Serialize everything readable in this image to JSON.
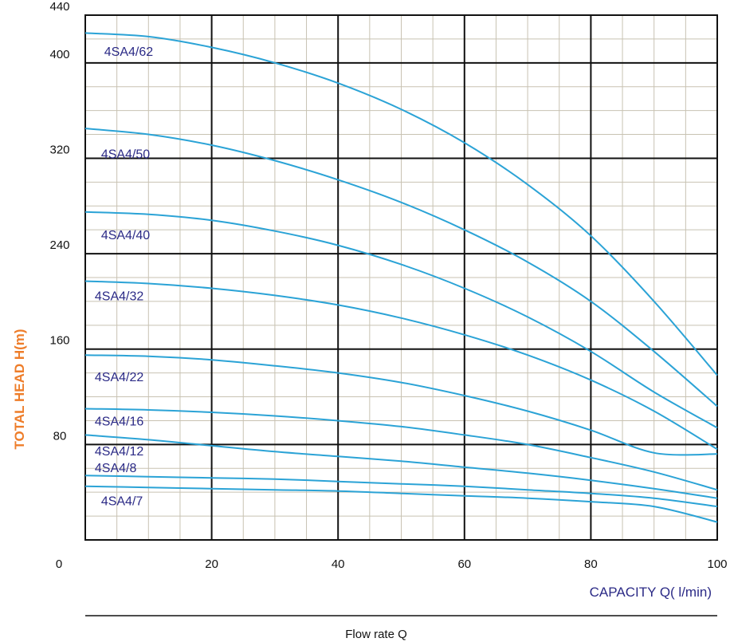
{
  "chart_data": {
    "type": "line",
    "xlabel": "CAPACITY Q( l/min)",
    "ylabel": "TOTAL HEAD H(m)",
    "footer": "Flow rate Q",
    "xlim": [
      0,
      100
    ],
    "ylim": [
      0,
      440
    ],
    "x_ticks": [
      "0",
      "20",
      "40",
      "60",
      "80",
      "100"
    ],
    "y_ticks": [
      "80",
      "160",
      "240",
      "320",
      "400",
      "440"
    ],
    "colors": {
      "curve": "#2ba3d6",
      "label": "#2b2a86",
      "ylabel": "#ee7d2a",
      "major_grid": "#111111",
      "minor_grid": "#c8c2b2"
    },
    "series": [
      {
        "name": "4SA4/62",
        "label_pos": [
          3,
          406
        ],
        "x": [
          0,
          10,
          20,
          30,
          40,
          50,
          60,
          70,
          80,
          90,
          100
        ],
        "y": [
          425,
          422,
          413,
          400,
          383,
          361,
          333,
          298,
          255,
          200,
          138
        ]
      },
      {
        "name": "4SA4/50",
        "label_pos": [
          2.5,
          320
        ],
        "x": [
          0,
          10,
          20,
          30,
          40,
          50,
          60,
          70,
          80,
          90,
          100
        ],
        "y": [
          345,
          340,
          331,
          318,
          302,
          283,
          260,
          233,
          200,
          158,
          112
        ]
      },
      {
        "name": "4SA4/40",
        "label_pos": [
          2.5,
          252
        ],
        "x": [
          0,
          10,
          20,
          30,
          40,
          50,
          60,
          70,
          80,
          90,
          100
        ],
        "y": [
          275,
          273,
          268,
          259,
          247,
          231,
          211,
          187,
          158,
          124,
          94
        ]
      },
      {
        "name": "4SA4/32",
        "label_pos": [
          1.5,
          201
        ],
        "x": [
          0,
          10,
          20,
          30,
          40,
          50,
          60,
          70,
          80,
          90,
          100
        ],
        "y": [
          217,
          215,
          211,
          205,
          197,
          186,
          172,
          155,
          134,
          108,
          76
        ]
      },
      {
        "name": "4SA4/22",
        "label_pos": [
          1.5,
          133
        ],
        "x": [
          0,
          10,
          20,
          30,
          40,
          50,
          60,
          70,
          80,
          90,
          100
        ],
        "y": [
          155,
          154,
          151,
          146,
          140,
          132,
          121,
          108,
          92,
          73,
          72
        ]
      },
      {
        "name": "4SA4/16",
        "label_pos": [
          1.5,
          96
        ],
        "x": [
          0,
          10,
          20,
          30,
          40,
          50,
          60,
          70,
          80,
          90,
          100
        ],
        "y": [
          110,
          109,
          107,
          104,
          100,
          95,
          88,
          80,
          69,
          57,
          42
        ]
      },
      {
        "name": "4SA4/12",
        "label_pos": [
          1.5,
          71
        ],
        "x": [
          0,
          10,
          20,
          30,
          40,
          50,
          60,
          70,
          80,
          90,
          100
        ],
        "y": [
          88,
          84,
          79,
          74,
          70,
          66,
          61,
          56,
          50,
          43,
          35
        ]
      },
      {
        "name": "4SA4/8",
        "label_pos": [
          1.5,
          57
        ],
        "x": [
          0,
          10,
          20,
          30,
          40,
          50,
          60,
          70,
          80,
          90,
          100
        ],
        "y": [
          54,
          53,
          52,
          51,
          49,
          47,
          45,
          42,
          39,
          35,
          28
        ]
      },
      {
        "name": "4SA4/7",
        "label_pos": [
          2.5,
          29
        ],
        "x": [
          0,
          10,
          20,
          30,
          40,
          50,
          60,
          70,
          80,
          90,
          100
        ],
        "y": [
          45,
          44,
          43,
          42,
          41,
          39,
          37,
          35,
          32,
          28,
          15
        ]
      }
    ]
  }
}
